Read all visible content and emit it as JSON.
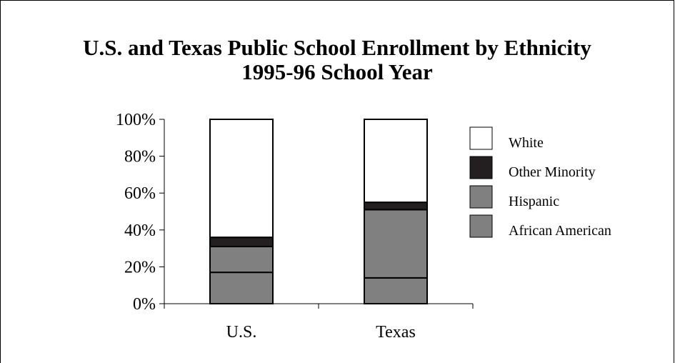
{
  "chart_data": {
    "type": "bar",
    "stacked": true,
    "normalized": true,
    "title": "U.S. and Texas Public School Enrollment by Ethnicity",
    "subtitle": "1995-96 School Year",
    "categories": [
      "U.S.",
      "Texas"
    ],
    "series": [
      {
        "name": "African American",
        "values": [
          17,
          14
        ],
        "color": "#808080"
      },
      {
        "name": "Hispanic",
        "values": [
          14,
          37
        ],
        "color": "#808080"
      },
      {
        "name": "Other Minority",
        "values": [
          5,
          4
        ],
        "color": "#231f20"
      },
      {
        "name": "White",
        "values": [
          64,
          45
        ],
        "color": "#ffffff"
      }
    ],
    "y_ticks": [
      "0%",
      "20%",
      "40%",
      "60%",
      "80%",
      "100%"
    ],
    "ylim": [
      0,
      100
    ],
    "legend_order": [
      "White",
      "Other Minority",
      "Hispanic",
      "African American"
    ],
    "legend_position": "right",
    "grid": false
  }
}
